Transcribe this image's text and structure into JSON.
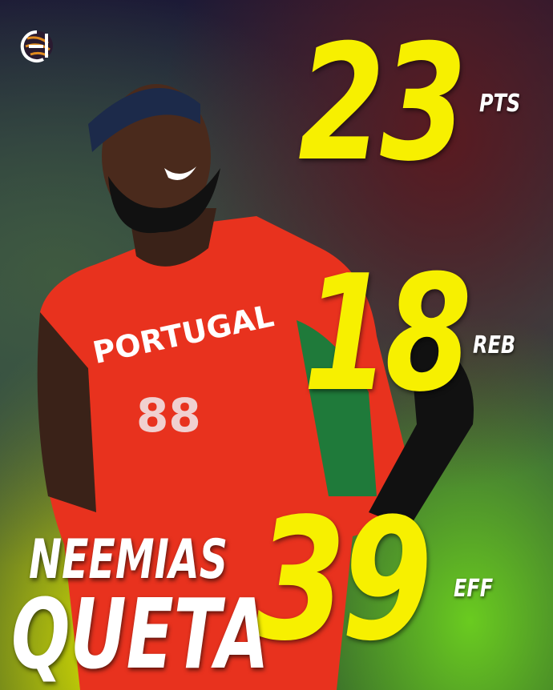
{
  "logo": {
    "icon": "basketball-logo-icon",
    "colors": [
      "#ffffff",
      "#e08a20"
    ]
  },
  "player": {
    "first_name": "NEEMIAS",
    "last_name": "QUETA",
    "jersey_text": "PORTUGAL",
    "jersey_number": "88",
    "jersey_color": "#e8321e"
  },
  "stats": [
    {
      "value": "23",
      "label": "PTS"
    },
    {
      "value": "18",
      "label": "REB"
    },
    {
      "value": "39",
      "label": "EFF"
    }
  ],
  "colors": {
    "stat_value": "#f7f000",
    "label": "#ffffff"
  }
}
